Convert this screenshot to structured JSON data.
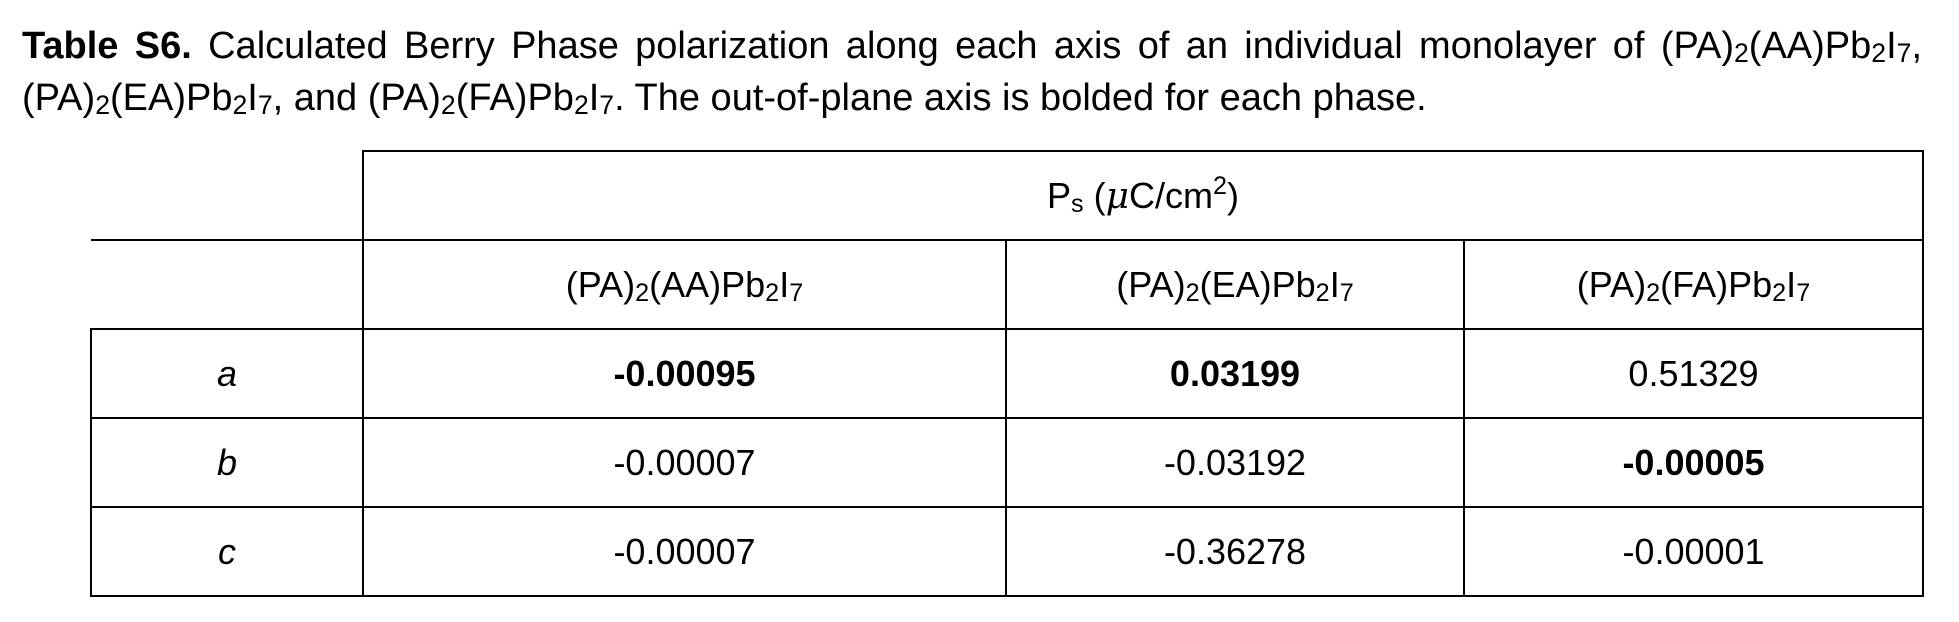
{
  "caption": {
    "label": "Table S6.",
    "text_1": " Calculated Berry Phase polarization along each axis of an individual monolayer of ",
    "text_2": ", and ",
    "text_3": ". The out-of-plane axis is bolded for each phase.",
    "separator": ", "
  },
  "compounds": [
    {
      "a1": "(PA)",
      "n1": "2",
      "a2": "(AA)Pb",
      "n2": "2",
      "a3": "I",
      "n3": "7"
    },
    {
      "a1": "(PA)",
      "n1": "2",
      "a2": "(EA)Pb",
      "n2": "2",
      "a3": "I",
      "n3": "7"
    },
    {
      "a1": "(PA)",
      "n1": "2",
      "a2": "(FA)Pb",
      "n2": "2",
      "a3": "I",
      "n3": "7"
    }
  ],
  "table": {
    "header": {
      "symbol": "P",
      "symbol_sub": "s",
      "open": " (",
      "mu": "μ",
      "unit": "C/cm",
      "unit_sup": "2",
      "close": ")"
    },
    "rows": [
      {
        "axis": "a",
        "values": [
          "-0.00095",
          "0.03199",
          "0.51329"
        ],
        "bold": [
          true,
          true,
          false
        ]
      },
      {
        "axis": "b",
        "values": [
          "-0.00007",
          "-0.03192",
          "-0.00005"
        ],
        "bold": [
          false,
          false,
          true
        ]
      },
      {
        "axis": "c",
        "values": [
          "-0.00007",
          "-0.36278",
          "-0.00001"
        ],
        "bold": [
          false,
          false,
          false
        ]
      }
    ]
  }
}
